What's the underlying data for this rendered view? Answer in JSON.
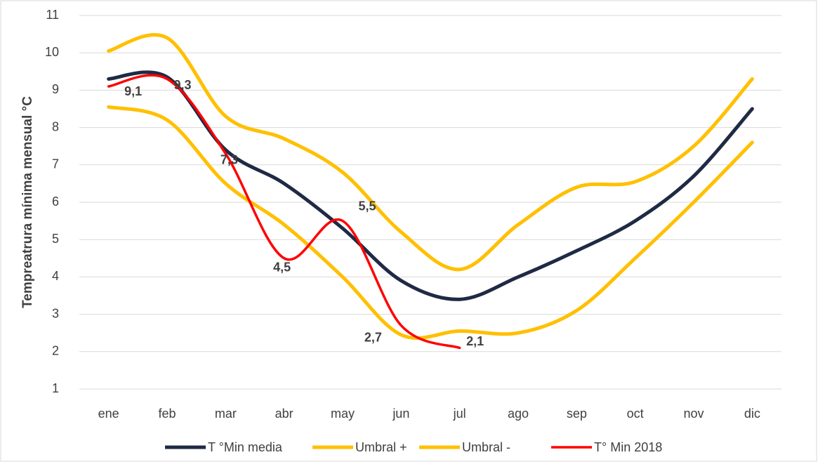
{
  "chart_data": {
    "type": "line",
    "y_label": "Tempreatrura  mínima mensual °C",
    "categories": [
      "ene",
      "feb",
      "mar",
      "abr",
      "may",
      "jun",
      "jul",
      "ago",
      "sep",
      "oct",
      "nov",
      "dic"
    ],
    "ylim": [
      1,
      11
    ],
    "yticks": [
      1,
      2,
      3,
      4,
      5,
      6,
      7,
      8,
      9,
      10,
      11
    ],
    "grid": true,
    "legend": "bottom",
    "series": [
      {
        "name": "T °Min media",
        "color": "#1f2a44",
        "values": [
          9.3,
          9.35,
          7.4,
          6.5,
          5.3,
          3.9,
          3.4,
          4.0,
          4.7,
          5.5,
          6.7,
          8.5
        ]
      },
      {
        "name": "Umbral +",
        "color": "#ffc000",
        "values": [
          10.05,
          10.4,
          8.3,
          7.7,
          6.8,
          5.2,
          4.2,
          5.4,
          6.4,
          6.55,
          7.5,
          9.3
        ]
      },
      {
        "name": "Umbral -",
        "color": "#ffc000",
        "values": [
          8.55,
          8.2,
          6.5,
          5.4,
          4.0,
          2.45,
          2.55,
          2.5,
          3.1,
          4.5,
          6.0,
          7.6
        ]
      },
      {
        "name": "T° Min 2018",
        "color": "#ff0000",
        "values": [
          9.1,
          9.3,
          7.3,
          4.5,
          5.5,
          2.7,
          2.1,
          null,
          null,
          null,
          null,
          null
        ],
        "value_labels": [
          "9,1",
          "9,3",
          "7,3",
          "4,5",
          "5,5",
          "2,7",
          "2,1",
          null,
          null,
          null,
          null,
          null
        ]
      }
    ]
  }
}
